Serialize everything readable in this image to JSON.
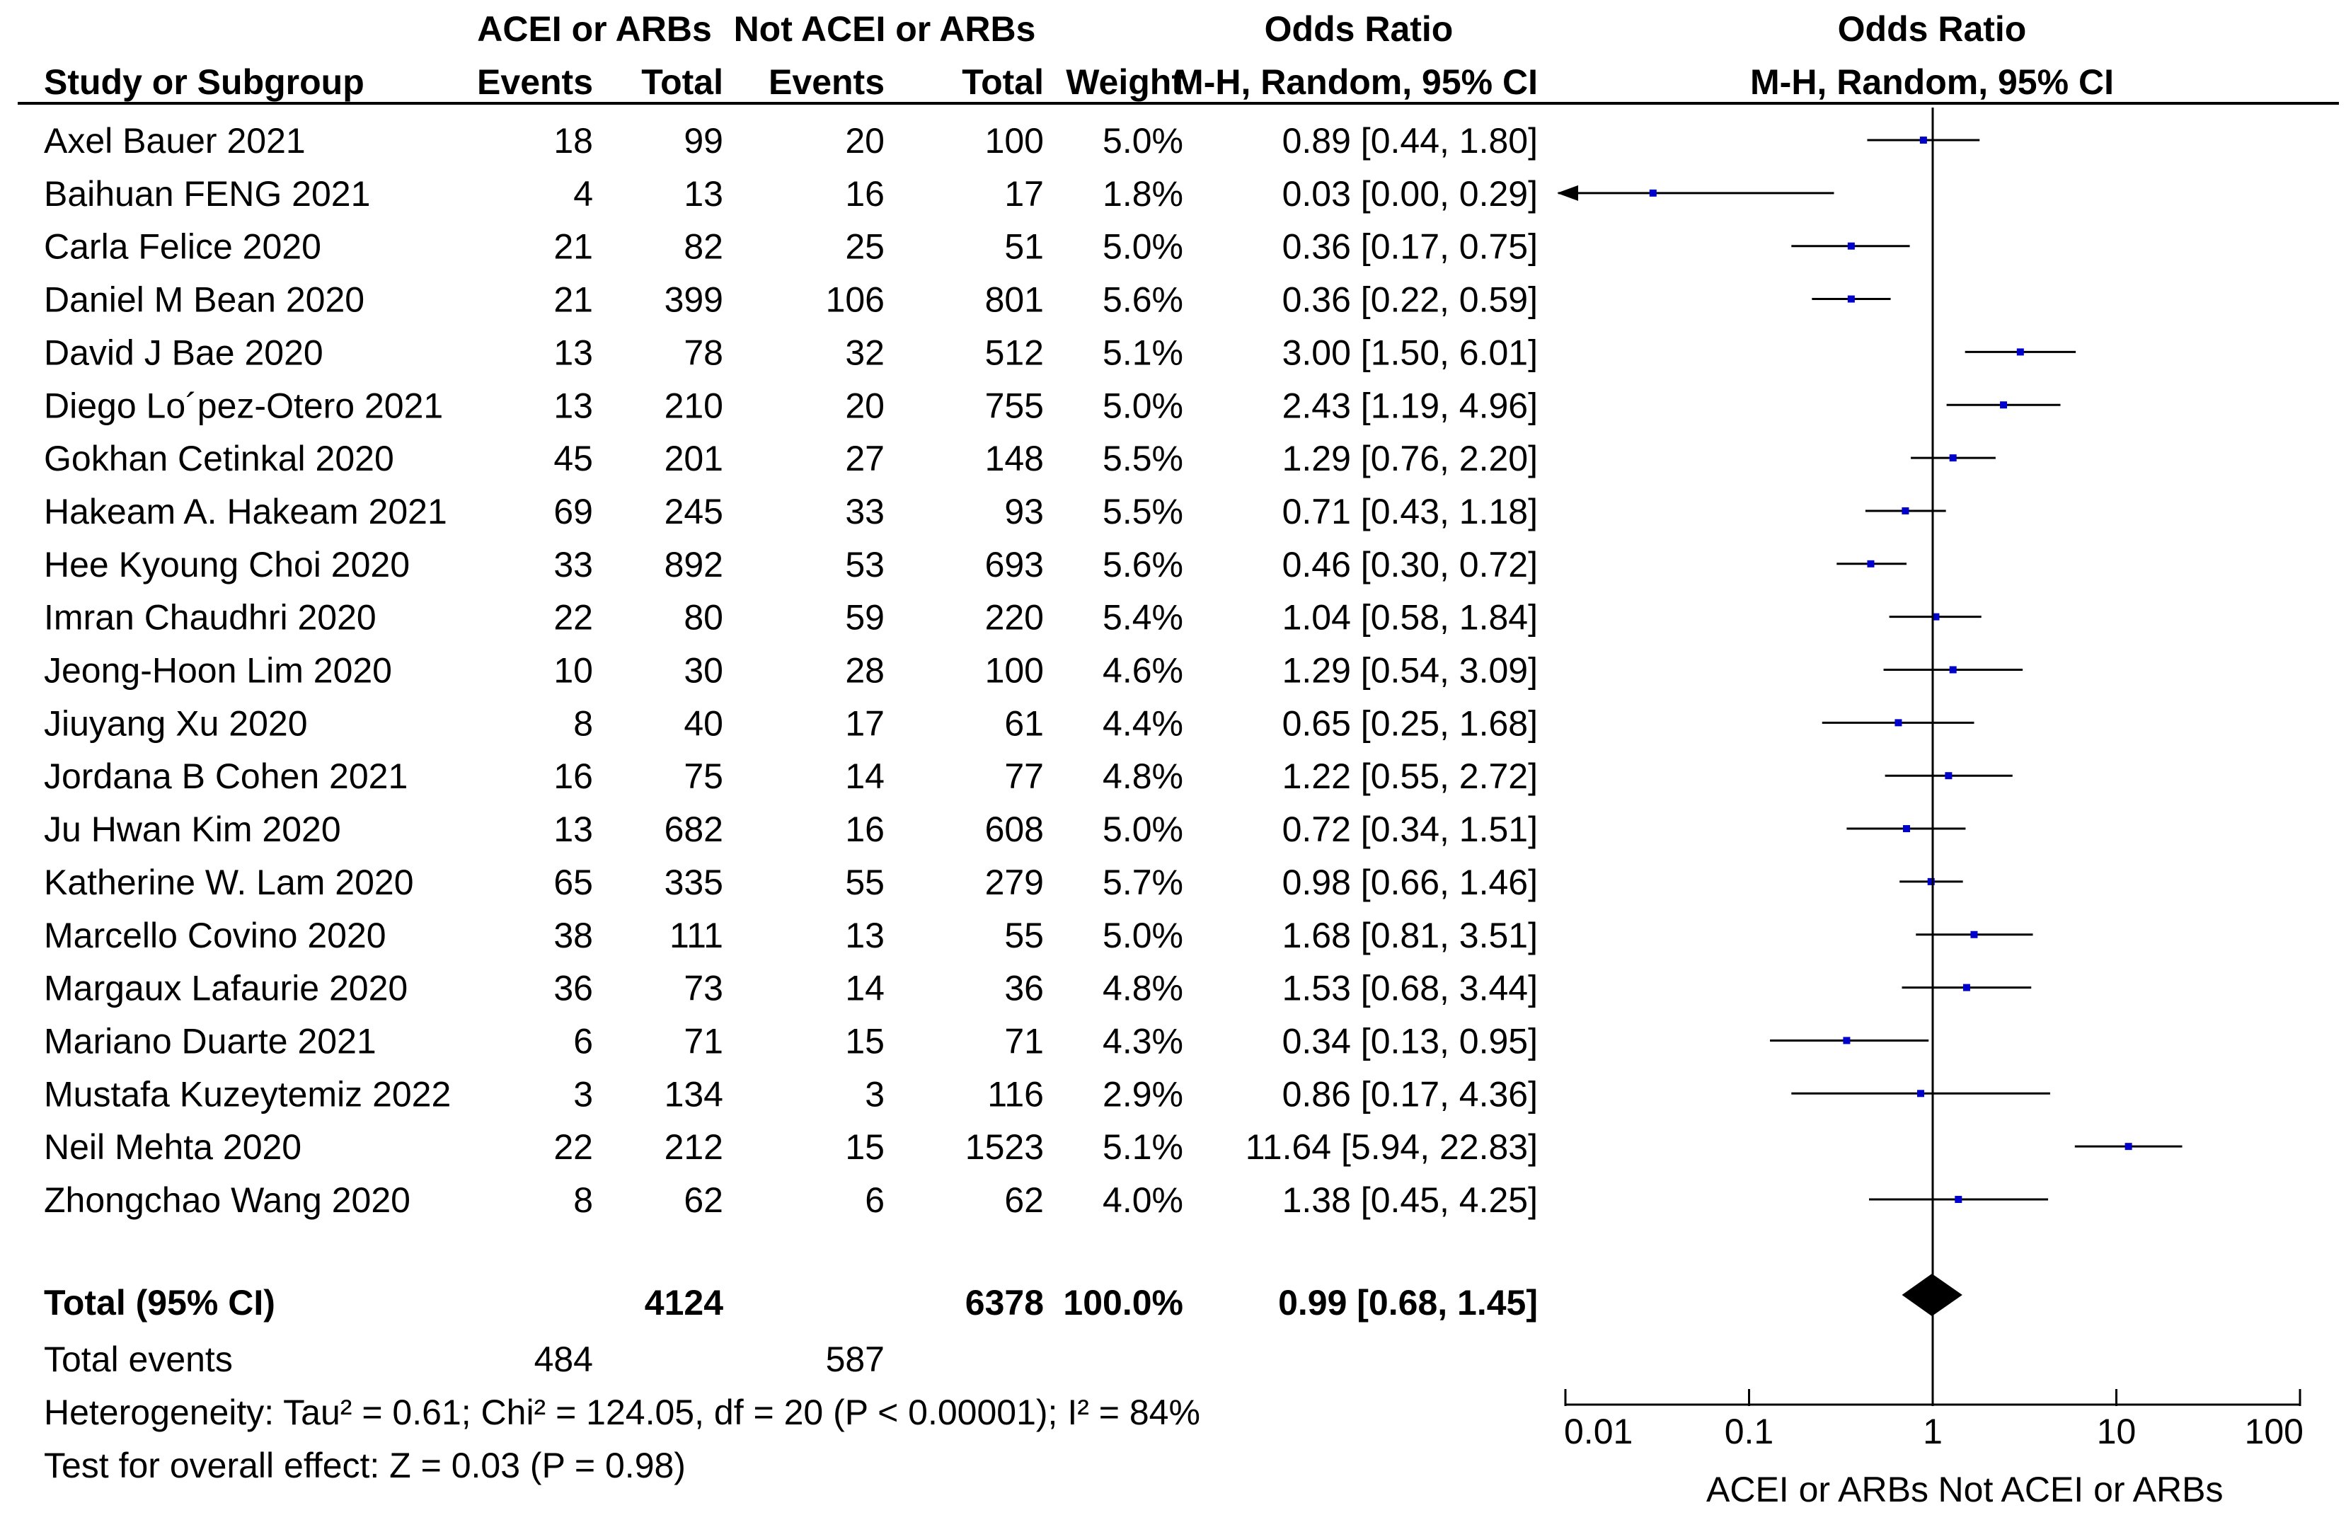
{
  "headers": {
    "study": "Study or Subgroup",
    "group1": "ACEI or ARBs",
    "group2": "Not ACEI or ARBs",
    "events": "Events",
    "total": "Total",
    "weight": "Weight",
    "or_title": "Odds Ratio",
    "or_method": "M-H, Random, 95% CI",
    "plot_title": "Odds Ratio",
    "plot_method": "M-H, Random, 95% CI"
  },
  "summary": {
    "total_label": "Total (95% CI)",
    "total_g1": "4124",
    "total_g2": "6378",
    "total_weight": "100.0%",
    "total_ci": "0.99 [0.68, 1.45]",
    "events_label": "Total events",
    "events_g1": "484",
    "events_g2": "587",
    "heterogeneity": "Heterogeneity: Tau² = 0.61; Chi² = 124.05, df = 20 (P < 0.00001); I² = 84%",
    "overall": "Test for overall effect: Z = 0.03 (P = 0.98)"
  },
  "chart_data": {
    "type": "forest",
    "title": "Odds Ratio",
    "subtitle": "M-H, Random, 95% CI",
    "x_scale": "log",
    "xlim": [
      0.01,
      100
    ],
    "ticks": [
      {
        "value": 0.01,
        "label": "0.01"
      },
      {
        "value": 0.1,
        "label": "0.1"
      },
      {
        "value": 1,
        "label": "1"
      },
      {
        "value": 10,
        "label": "10"
      },
      {
        "value": 100,
        "label": "100"
      }
    ],
    "left_label": "ACEI or ARBs",
    "right_label": "Not ACEI or ARBs",
    "studies": [
      {
        "name": "Axel Bauer 2021",
        "e1": "18",
        "t1": "99",
        "e2": "20",
        "t2": "100",
        "weight": "5.0%",
        "ci": "0.89 [0.44, 1.80]",
        "or": 0.89,
        "lo": 0.44,
        "hi": 1.8
      },
      {
        "name": "Baihuan FENG 2021",
        "e1": "4",
        "t1": "13",
        "e2": "16",
        "t2": "17",
        "weight": "1.8%",
        "ci": "0.03 [0.00, 0.29]",
        "or": 0.03,
        "lo": 0.001,
        "hi": 0.29
      },
      {
        "name": "Carla Felice 2020",
        "e1": "21",
        "t1": "82",
        "e2": "25",
        "t2": "51",
        "weight": "5.0%",
        "ci": "0.36 [0.17, 0.75]",
        "or": 0.36,
        "lo": 0.17,
        "hi": 0.75
      },
      {
        "name": "Daniel M Bean 2020",
        "e1": "21",
        "t1": "399",
        "e2": "106",
        "t2": "801",
        "weight": "5.6%",
        "ci": "0.36 [0.22, 0.59]",
        "or": 0.36,
        "lo": 0.22,
        "hi": 0.59
      },
      {
        "name": "David J Bae 2020",
        "e1": "13",
        "t1": "78",
        "e2": "32",
        "t2": "512",
        "weight": "5.1%",
        "ci": "3.00 [1.50, 6.01]",
        "or": 3.0,
        "lo": 1.5,
        "hi": 6.01
      },
      {
        "name": "Diego Lo´pez-Otero 2021",
        "e1": "13",
        "t1": "210",
        "e2": "20",
        "t2": "755",
        "weight": "5.0%",
        "ci": "2.43 [1.19, 4.96]",
        "or": 2.43,
        "lo": 1.19,
        "hi": 4.96
      },
      {
        "name": "Gokhan Cetinkal 2020",
        "e1": "45",
        "t1": "201",
        "e2": "27",
        "t2": "148",
        "weight": "5.5%",
        "ci": "1.29 [0.76, 2.20]",
        "or": 1.29,
        "lo": 0.76,
        "hi": 2.2
      },
      {
        "name": "Hakeam A. Hakeam 2021",
        "e1": "69",
        "t1": "245",
        "e2": "33",
        "t2": "93",
        "weight": "5.5%",
        "ci": "0.71 [0.43, 1.18]",
        "or": 0.71,
        "lo": 0.43,
        "hi": 1.18
      },
      {
        "name": "Hee Kyoung Choi 2020",
        "e1": "33",
        "t1": "892",
        "e2": "53",
        "t2": "693",
        "weight": "5.6%",
        "ci": "0.46 [0.30, 0.72]",
        "or": 0.46,
        "lo": 0.3,
        "hi": 0.72
      },
      {
        "name": "Imran Chaudhri 2020",
        "e1": "22",
        "t1": "80",
        "e2": "59",
        "t2": "220",
        "weight": "5.4%",
        "ci": "1.04 [0.58, 1.84]",
        "or": 1.04,
        "lo": 0.58,
        "hi": 1.84
      },
      {
        "name": "Jeong-Hoon Lim 2020",
        "e1": "10",
        "t1": "30",
        "e2": "28",
        "t2": "100",
        "weight": "4.6%",
        "ci": "1.29 [0.54, 3.09]",
        "or": 1.29,
        "lo": 0.54,
        "hi": 3.09
      },
      {
        "name": "Jiuyang Xu 2020",
        "e1": "8",
        "t1": "40",
        "e2": "17",
        "t2": "61",
        "weight": "4.4%",
        "ci": "0.65 [0.25, 1.68]",
        "or": 0.65,
        "lo": 0.25,
        "hi": 1.68
      },
      {
        "name": "Jordana B Cohen 2021",
        "e1": "16",
        "t1": "75",
        "e2": "14",
        "t2": "77",
        "weight": "4.8%",
        "ci": "1.22 [0.55, 2.72]",
        "or": 1.22,
        "lo": 0.55,
        "hi": 2.72
      },
      {
        "name": "Ju Hwan Kim 2020",
        "e1": "13",
        "t1": "682",
        "e2": "16",
        "t2": "608",
        "weight": "5.0%",
        "ci": "0.72 [0.34, 1.51]",
        "or": 0.72,
        "lo": 0.34,
        "hi": 1.51
      },
      {
        "name": "Katherine W. Lam 2020",
        "e1": "65",
        "t1": "335",
        "e2": "55",
        "t2": "279",
        "weight": "5.7%",
        "ci": "0.98 [0.66, 1.46]",
        "or": 0.98,
        "lo": 0.66,
        "hi": 1.46
      },
      {
        "name": "Marcello Covino 2020",
        "e1": "38",
        "t1": "111",
        "e2": "13",
        "t2": "55",
        "weight": "5.0%",
        "ci": "1.68 [0.81, 3.51]",
        "or": 1.68,
        "lo": 0.81,
        "hi": 3.51
      },
      {
        "name": "Margaux Lafaurie 2020",
        "e1": "36",
        "t1": "73",
        "e2": "14",
        "t2": "36",
        "weight": "4.8%",
        "ci": "1.53 [0.68, 3.44]",
        "or": 1.53,
        "lo": 0.68,
        "hi": 3.44
      },
      {
        "name": "Mariano Duarte 2021",
        "e1": "6",
        "t1": "71",
        "e2": "15",
        "t2": "71",
        "weight": "4.3%",
        "ci": "0.34 [0.13, 0.95]",
        "or": 0.34,
        "lo": 0.13,
        "hi": 0.95
      },
      {
        "name": "Mustafa Kuzeytemiz 2022",
        "e1": "3",
        "t1": "134",
        "e2": "3",
        "t2": "116",
        "weight": "2.9%",
        "ci": "0.86 [0.17, 4.36]",
        "or": 0.86,
        "lo": 0.17,
        "hi": 4.36
      },
      {
        "name": "Neil Mehta 2020",
        "e1": "22",
        "t1": "212",
        "e2": "15",
        "t2": "1523",
        "weight": "5.1%",
        "ci": "11.64 [5.94, 22.83]",
        "or": 11.64,
        "lo": 5.94,
        "hi": 22.83
      },
      {
        "name": "Zhongchao Wang 2020",
        "e1": "8",
        "t1": "62",
        "e2": "6",
        "t2": "62",
        "weight": "4.0%",
        "ci": "1.38 [0.45, 4.25]",
        "or": 1.38,
        "lo": 0.45,
        "hi": 4.25
      }
    ],
    "pooled": {
      "or": 0.99,
      "lo": 0.68,
      "hi": 1.45
    },
    "colors": {
      "point": "#0000cc",
      "line": "#000000",
      "diamond": "#000000"
    }
  }
}
